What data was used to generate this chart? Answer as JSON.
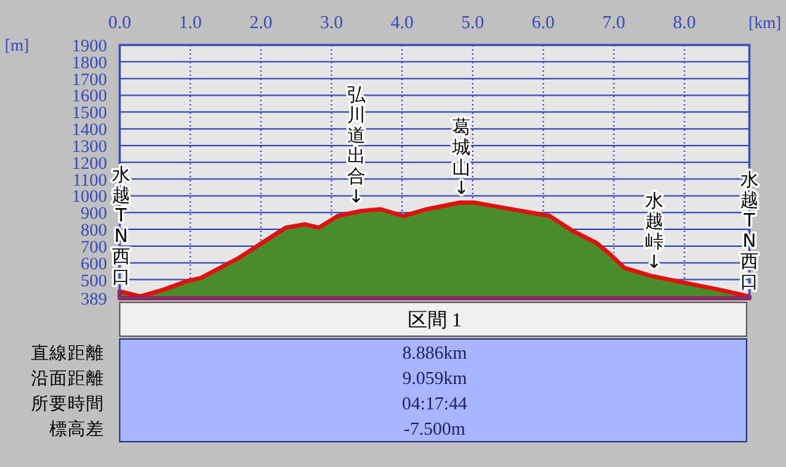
{
  "chart_data": {
    "type": "area",
    "xlabel": "[km]",
    "ylabel": "[m]",
    "x": [
      0,
      0.29,
      0.62,
      0.95,
      1.15,
      1.42,
      1.69,
      2.02,
      2.35,
      2.62,
      2.82,
      3.09,
      3.42,
      3.69,
      4.02,
      4.35,
      4.82,
      5.02,
      5.42,
      5.69,
      6.09,
      6.42,
      6.75,
      6.95,
      7.15,
      7.55,
      8.02,
      8.49,
      8.92
    ],
    "series": [
      {
        "color": "#4a8c2a",
        "values": [
          430,
          400,
          440,
          490,
          510,
          570,
          630,
          720,
          810,
          830,
          810,
          880,
          910,
          920,
          880,
          920,
          960,
          960,
          930,
          910,
          880,
          790,
          720,
          650,
          570,
          520,
          480,
          440,
          400
        ]
      }
    ],
    "xlim": [
      0,
      8.92
    ],
    "ylim": [
      389,
      1900
    ],
    "xticks": [
      {
        "value": 0,
        "label": "0.0"
      },
      {
        "value": 1,
        "label": "1.0"
      },
      {
        "value": 2,
        "label": "2.0"
      },
      {
        "value": 3,
        "label": "3.0"
      },
      {
        "value": 4,
        "label": "4.0"
      },
      {
        "value": 5,
        "label": "5.0"
      },
      {
        "value": 6,
        "label": "6.0"
      },
      {
        "value": 7,
        "label": "7.0"
      },
      {
        "value": 8,
        "label": "8.0"
      }
    ],
    "yticks": [
      389,
      500,
      600,
      700,
      800,
      900,
      1000,
      1100,
      1200,
      1300,
      1400,
      1500,
      1600,
      1700,
      1800,
      1900
    ],
    "grid": true,
    "annotations": [
      {
        "text": "水越TN西口",
        "x": 0,
        "y": 430
      },
      {
        "text": "弘川道出合↓",
        "x": 3.35,
        "y": 910
      },
      {
        "text": "葛城山↓",
        "x": 4.84,
        "y": 960
      },
      {
        "text": "水越峠↓",
        "x": 7.57,
        "y": 520
      },
      {
        "text": "水越TN西口",
        "x": 8.92,
        "y": 400
      },
      "区間 1",
      "直線距離",
      "8.886km",
      "沿面距離",
      "9.059km",
      "所要時間",
      "04:17:44",
      "標高差",
      "-7.500m"
    ]
  }
}
